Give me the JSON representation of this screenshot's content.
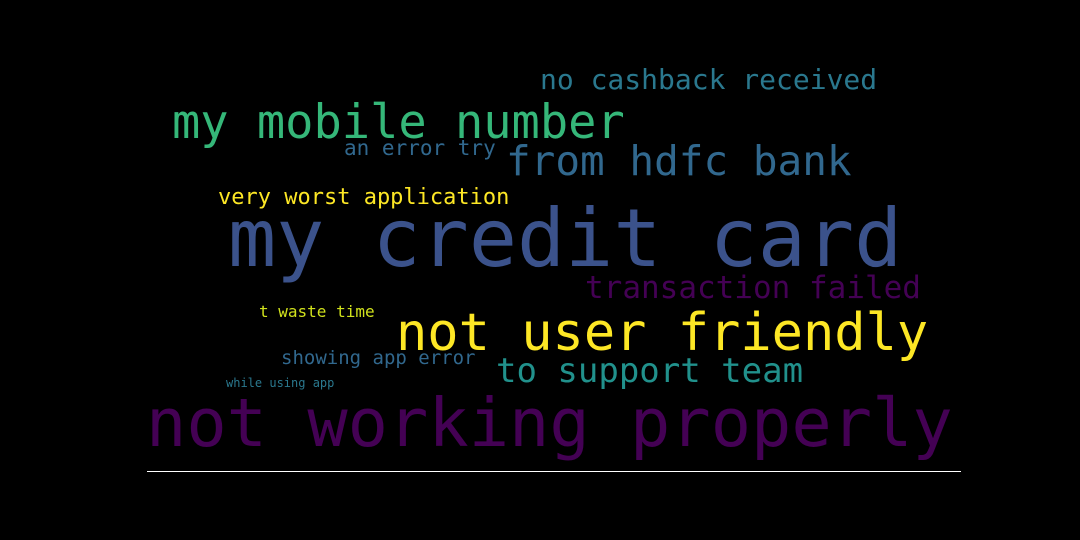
{
  "words": [
    {
      "text": "no cashback received",
      "color": "#2a788e"
    },
    {
      "text": "my mobile number",
      "color": "#35b779"
    },
    {
      "text": "an error try",
      "color": "#31688e"
    },
    {
      "text": "from hdfc bank",
      "color": "#31688e"
    },
    {
      "text": "very worst application",
      "color": "#fde725"
    },
    {
      "text": "my credit card",
      "color": "#3b528b"
    },
    {
      "text": "transaction failed",
      "color": "#440154"
    },
    {
      "text": "t waste time",
      "color": "#d0e11c"
    },
    {
      "text": "not user friendly",
      "color": "#fde725"
    },
    {
      "text": "showing app error",
      "color": "#31688e"
    },
    {
      "text": "to support team",
      "color": "#21918c"
    },
    {
      "text": "while using app",
      "color": "#2a788e"
    },
    {
      "text": "not working properly",
      "color": "#440154"
    }
  ]
}
